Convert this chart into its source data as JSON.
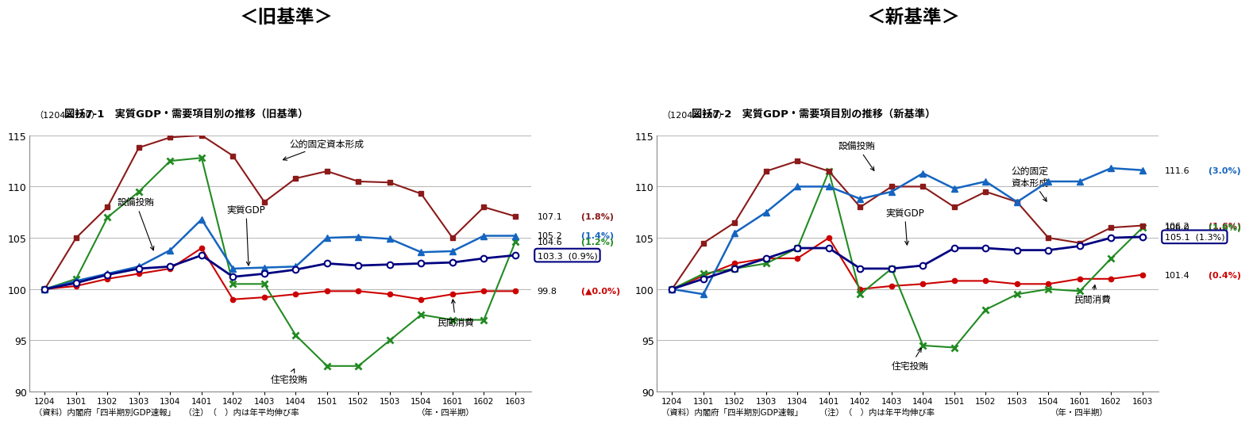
{
  "x_labels": [
    "1204",
    "1301",
    "1302",
    "1303",
    "1304",
    "1401",
    "1402",
    "1403",
    "1404",
    "1501",
    "1502",
    "1503",
    "1504",
    "1601",
    "1602",
    "1603"
  ],
  "chart1": {
    "title_main": "＜旧基準＞",
    "title_sub": "図袄7-1　実質GDP・需要項目別の推移（旧基準）",
    "title_note": "（1204＝100）",
    "gdp": [
      100.0,
      100.6,
      101.4,
      102.0,
      102.2,
      103.3,
      101.2,
      101.5,
      101.9,
      102.5,
      102.3,
      102.4,
      102.5,
      102.6,
      103.0,
      103.3
    ],
    "setubi": [
      100.0,
      100.8,
      101.5,
      102.2,
      103.8,
      106.8,
      102.0,
      102.1,
      102.2,
      105.0,
      105.1,
      104.9,
      103.6,
      103.7,
      105.2,
      105.2
    ],
    "minkan": [
      100.0,
      100.3,
      101.0,
      101.5,
      102.0,
      104.0,
      99.0,
      99.2,
      99.5,
      99.8,
      99.8,
      99.5,
      99.0,
      99.5,
      99.8,
      99.8
    ],
    "jutaku": [
      100.0,
      101.0,
      107.0,
      109.5,
      112.5,
      112.8,
      100.5,
      100.5,
      95.5,
      92.5,
      92.5,
      95.0,
      97.5,
      97.0,
      97.0,
      104.6
    ],
    "kouteki": [
      100.0,
      105.0,
      108.0,
      113.8,
      114.8,
      115.0,
      113.0,
      108.5,
      110.8,
      111.5,
      110.5,
      110.4,
      109.3,
      105.0,
      108.0,
      107.1
    ],
    "gdp_label": "実質GDP",
    "setubi_label": "設備投賄",
    "minkan_label": "民間消費",
    "jutaku_label": "住宅投賄",
    "kouteki_label": "公的固定資本形成",
    "end_val_nums": [
      107.1,
      105.2,
      104.6,
      103.3,
      99.8
    ],
    "end_val_strs": [
      "(1.8%)",
      "(1.4%)",
      "(1.2%)",
      "(0.9%)",
      "(▲0.0%)"
    ],
    "end_colors": [
      "#8B1A1A",
      "#1565C0",
      "#228B22",
      "#000080",
      "#CC0000"
    ],
    "circled_idx": 3,
    "footer1": "（資料）内閣府「四半期別GDP速報」　（注）（　）内は年平均伸び率",
    "footer2": "（年・四半期）"
  },
  "chart2": {
    "title_main": "＜新基準＞",
    "title_sub": "図袄7-2　実質GDP・需要項目別の推移（新基準）",
    "title_note": "（1204＝100）",
    "gdp": [
      100.0,
      101.0,
      102.0,
      103.0,
      104.0,
      104.0,
      102.0,
      102.0,
      102.3,
      104.0,
      104.0,
      103.8,
      103.8,
      104.2,
      105.0,
      105.1
    ],
    "setubi": [
      100.0,
      99.5,
      105.5,
      107.5,
      110.0,
      110.0,
      108.8,
      109.5,
      111.3,
      109.8,
      110.5,
      108.5,
      110.5,
      110.5,
      111.8,
      111.6
    ],
    "minkan": [
      100.0,
      101.3,
      102.5,
      103.0,
      103.0,
      105.0,
      100.0,
      100.3,
      100.5,
      100.8,
      100.8,
      100.5,
      100.5,
      101.0,
      101.0,
      101.4
    ],
    "jutaku": [
      100.0,
      101.5,
      102.0,
      102.5,
      104.0,
      111.5,
      99.5,
      102.0,
      94.5,
      94.3,
      98.0,
      99.5,
      100.0,
      99.8,
      103.0,
      106.0
    ],
    "kouteki": [
      100.0,
      104.5,
      106.5,
      111.5,
      112.5,
      111.5,
      108.0,
      110.0,
      110.0,
      108.0,
      109.5,
      108.5,
      105.0,
      104.5,
      106.0,
      106.2
    ],
    "gdp_label": "実質GDP",
    "setubi_label": "設備投賄",
    "minkan_label": "民間消費",
    "jutaku_label": "住宅投賄",
    "kouteki_label": "公的固定資本形成",
    "end_val_nums": [
      111.6,
      106.2,
      106.0,
      105.1,
      101.4
    ],
    "end_val_strs": [
      "(3.0%)",
      "(1.6%)",
      "(1.6%)",
      "(1.3%)",
      "(0.4%)"
    ],
    "end_colors": [
      "#1565C0",
      "#8B1A1A",
      "#228B22",
      "#000080",
      "#CC0000"
    ],
    "circled_idx": 3,
    "footer1": "（資料）内閣府「四半期別GDP速報」　　（注）（　）内は年平均伸び率",
    "footer2": "（年・四半期）"
  },
  "ylim": [
    90,
    115
  ],
  "yticks": [
    90,
    95,
    100,
    105,
    110,
    115
  ],
  "color_kouteki": "#8B1A1A",
  "color_setubi": "#1565C0",
  "color_gdp": "#000080",
  "color_minkan": "#CC0000",
  "color_jutaku": "#228B22"
}
